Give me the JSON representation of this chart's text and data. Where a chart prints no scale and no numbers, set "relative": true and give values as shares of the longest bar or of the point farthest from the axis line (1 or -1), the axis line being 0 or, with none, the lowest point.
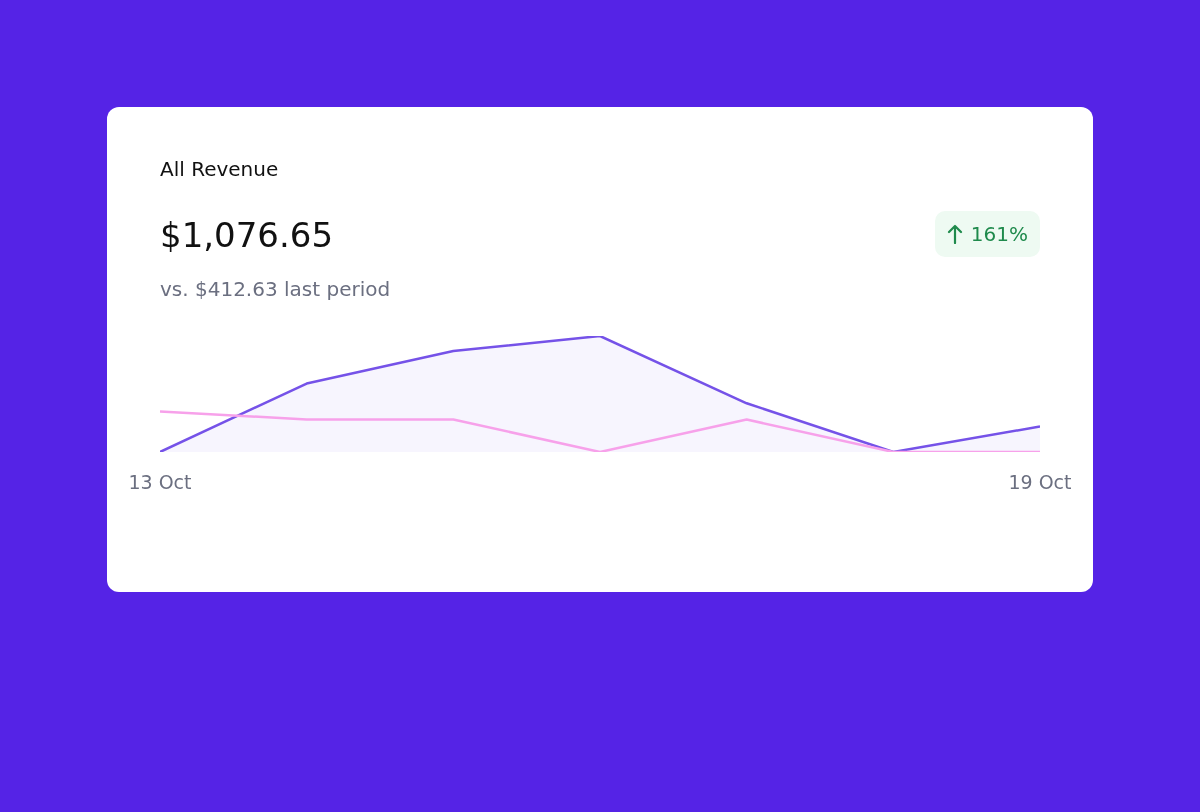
{
  "chart_data": {
    "type": "area",
    "title": "All Revenue",
    "subtitle": "$1,076.65",
    "annotations": [
      "vs. $412.63 last period",
      "161%"
    ],
    "relative": true,
    "grid": false,
    "legend": false,
    "marker": "none",
    "line_style": "solid",
    "categories": [
      "13 Oct",
      null,
      null,
      null,
      null,
      null,
      "19 Oct"
    ],
    "series": [
      {
        "color": "#7552e8",
        "values": [
          0,
          0.59,
          0.87,
          1,
          0.42,
          0,
          0.22
        ]
      },
      {
        "type": "line",
        "color": "#f7a1ea",
        "values": [
          0.35,
          0.28,
          0.28,
          0,
          0.28,
          0,
          0
        ]
      }
    ]
  }
}
